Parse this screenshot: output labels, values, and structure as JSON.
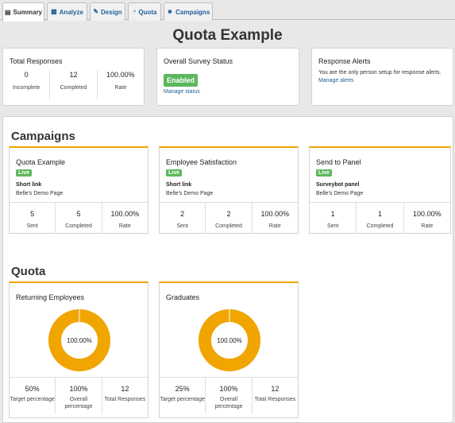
{
  "tabs": [
    {
      "label": "Summary",
      "icon": "document-icon"
    },
    {
      "label": "Analyze",
      "icon": "bar-chart-icon"
    },
    {
      "label": "Design",
      "icon": "pencil-icon"
    },
    {
      "label": "Quota",
      "icon": "pie-chart-icon"
    },
    {
      "label": "Campaigns",
      "icon": "users-icon"
    }
  ],
  "page_title": "Quota Example",
  "total_responses": {
    "title": "Total Responses",
    "stats": [
      {
        "value": "0",
        "label": "Incomplete"
      },
      {
        "value": "12",
        "label": "Completed"
      },
      {
        "value": "100.00%",
        "label": "Rate"
      }
    ]
  },
  "survey_status": {
    "title": "Overall Survey Status",
    "status": "Enabled",
    "link": "Manage status"
  },
  "response_alerts": {
    "title": "Response Alerts",
    "text": "You are the only person setup for response alerts.",
    "link": "Manage alerts"
  },
  "campaigns": {
    "heading": "Campaigns",
    "items": [
      {
        "title": "Quota Example",
        "badge": "Live",
        "link_label": "Short link",
        "page": "Belle's Demo Page",
        "stats": [
          {
            "value": "5",
            "label": "Sent"
          },
          {
            "value": "5",
            "label": "Completed"
          },
          {
            "value": "100.00%",
            "label": "Rate"
          }
        ]
      },
      {
        "title": "Employee Satisfaction",
        "badge": "Live",
        "link_label": "Short link",
        "page": "Belle's Demo Page",
        "stats": [
          {
            "value": "2",
            "label": "Sent"
          },
          {
            "value": "2",
            "label": "Completed"
          },
          {
            "value": "100.00%",
            "label": "Rate"
          }
        ]
      },
      {
        "title": "Send to Panel",
        "badge": "Live",
        "link_label": "Surveybot panel",
        "page": "Belle's Demo Page",
        "stats": [
          {
            "value": "1",
            "label": "Sent"
          },
          {
            "value": "1",
            "label": "Completed"
          },
          {
            "value": "100.00%",
            "label": "Rate"
          }
        ]
      }
    ]
  },
  "quota": {
    "heading": "Quota",
    "accent": "#f0a500",
    "items": [
      {
        "title": "Returning Employees",
        "donut_label": "100.00%",
        "fill": 1.0,
        "stats": [
          {
            "value": "50%",
            "label": "Target percentage"
          },
          {
            "value": "100%",
            "label": "Overall percentage"
          },
          {
            "value": "12",
            "label": "Total Responses"
          }
        ]
      },
      {
        "title": "Graduates",
        "donut_label": "100.00%",
        "fill": 1.0,
        "stats": [
          {
            "value": "25%",
            "label": "Target percentage"
          },
          {
            "value": "100%",
            "label": "Overall percentage"
          },
          {
            "value": "12",
            "label": "Total Responses"
          }
        ]
      }
    ]
  }
}
